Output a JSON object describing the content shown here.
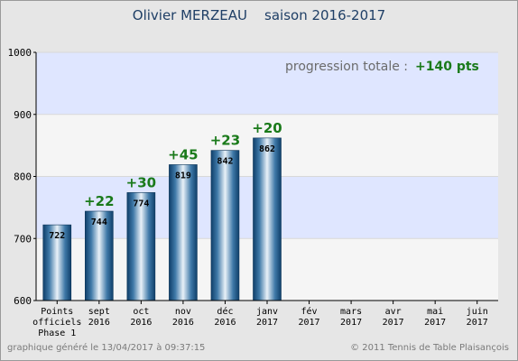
{
  "header": {
    "title": "Olivier MERZEAU    saison 2016-2017"
  },
  "summary": {
    "label": "progression totale :",
    "value": "+140 pts"
  },
  "footer": {
    "left": "graphique généré le 13/04/2017 à 09:37:15",
    "right": "© 2011 Tennis de Table Plaisançois"
  },
  "colors": {
    "bar": "#1d5a8c",
    "gain": "#1a7a1a",
    "band_blue": "#dfe6ff",
    "band_light": "#f5f5f5",
    "title": "#1f3f66"
  },
  "chart_data": {
    "type": "bar",
    "title": "Olivier MERZEAU    saison 2016-2017",
    "categories": [
      [
        "Points",
        "officiels",
        "Phase 1"
      ],
      [
        "sept",
        "2016"
      ],
      [
        "oct",
        "2016"
      ],
      [
        "nov",
        "2016"
      ],
      [
        "déc",
        "2016"
      ],
      [
        "janv",
        "2017"
      ],
      [
        "fév",
        "2017"
      ],
      [
        "mars",
        "2017"
      ],
      [
        "avr",
        "2017"
      ],
      [
        "mai",
        "2017"
      ],
      [
        "juin",
        "2017"
      ]
    ],
    "values": [
      722,
      744,
      774,
      819,
      842,
      862,
      null,
      null,
      null,
      null,
      null
    ],
    "gains": [
      "",
      "+22",
      "+30",
      "+45",
      "+23",
      "+20",
      "",
      "",
      "",
      "",
      ""
    ],
    "ylim": [
      600,
      1000
    ],
    "yticks": [
      600,
      700,
      800,
      900,
      1000
    ],
    "xlabel": "",
    "ylabel": ""
  }
}
